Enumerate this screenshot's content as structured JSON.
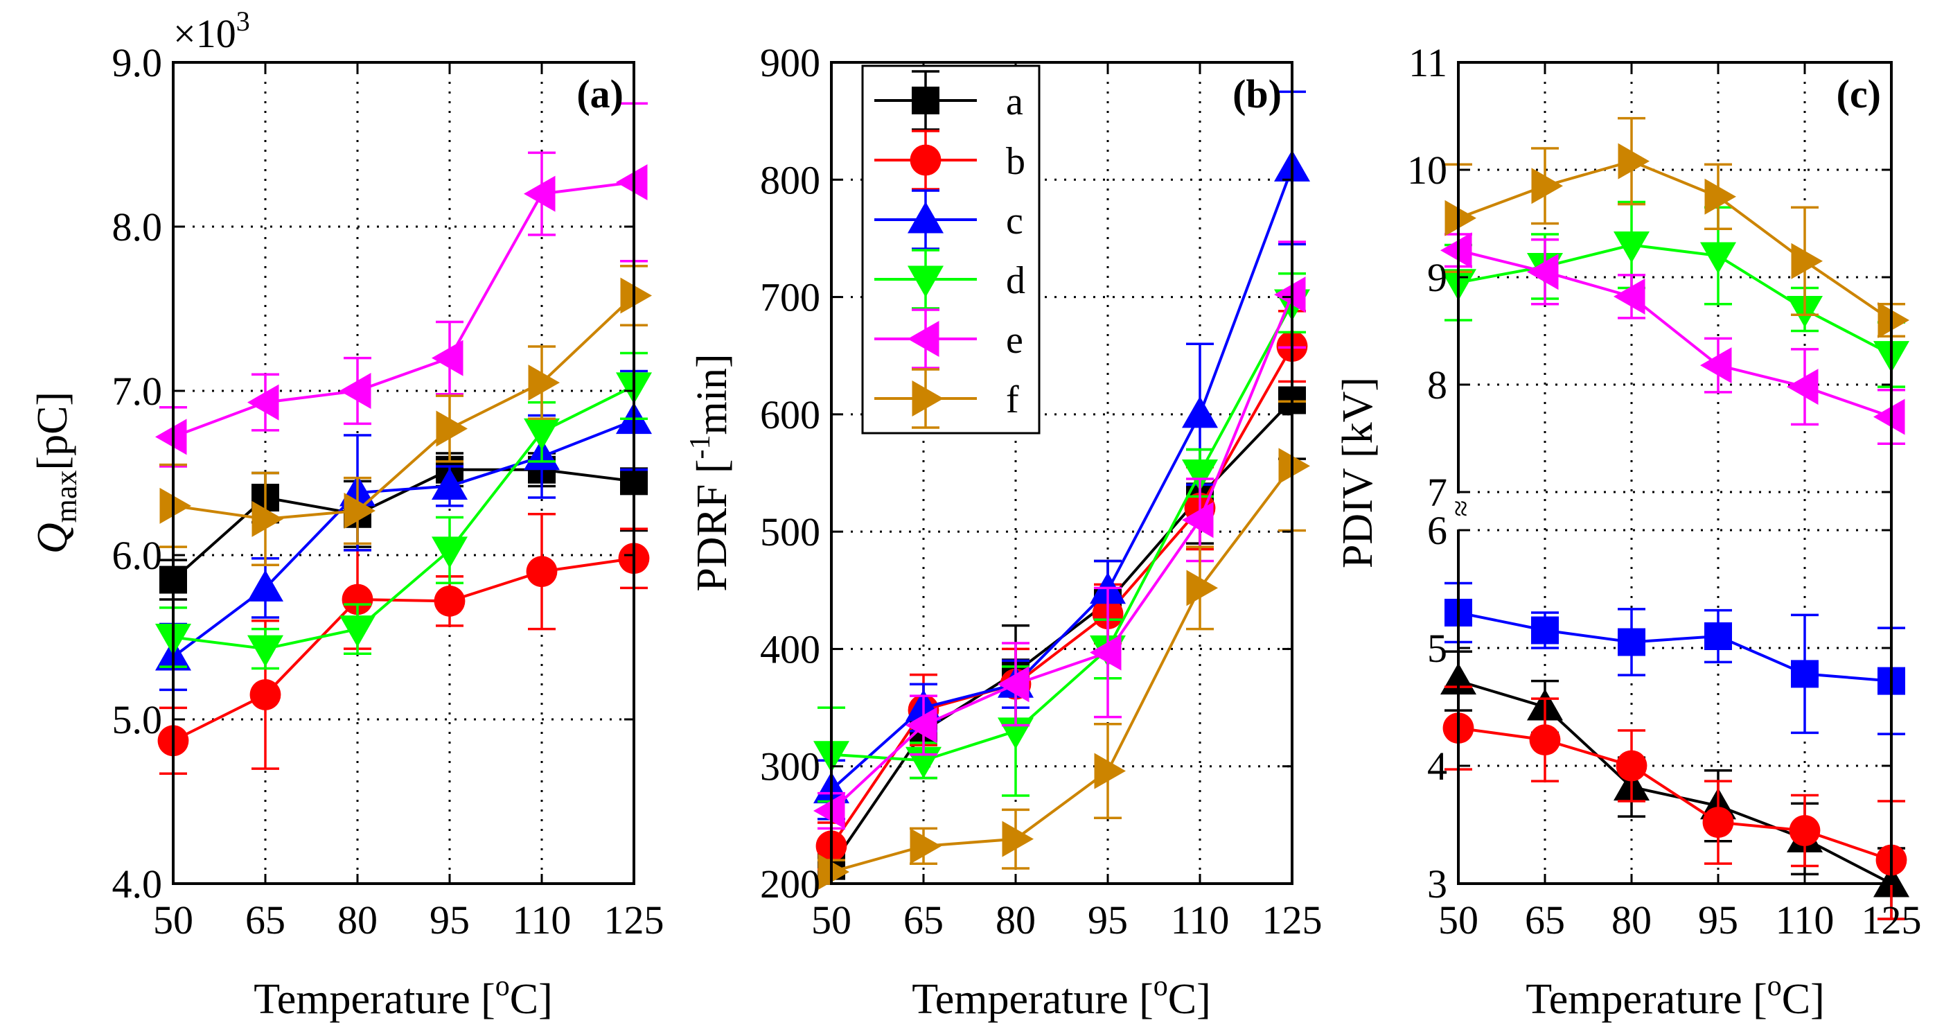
{
  "chart_data": [
    {
      "panel": "(a)",
      "type": "line",
      "xlabel": "Temperature [°C]",
      "ylabel": "Q_max [pC]",
      "ylabel_main": "Q",
      "ylabel_sub": "max",
      "ylabel_unit": "[pC]",
      "y_multiplier": "×10",
      "y_multiplier_exp": "3",
      "x": [
        50,
        65,
        80,
        95,
        110,
        125
      ],
      "xlim": [
        50,
        125
      ],
      "ylim": [
        4.0,
        9.0
      ],
      "yticks": [
        4.0,
        5.0,
        6.0,
        7.0,
        8.0,
        9.0
      ],
      "ytick_labels": [
        "4.0",
        "5.0",
        "6.0",
        "7.0",
        "8.0",
        "9.0"
      ],
      "grid": true,
      "series": [
        {
          "name": "a",
          "values": [
            5.85,
            6.35,
            6.25,
            6.52,
            6.52,
            6.45
          ],
          "errors": [
            0.12,
            0.15,
            0.2,
            0.1,
            0.1,
            0.3
          ]
        },
        {
          "name": "b",
          "values": [
            4.87,
            5.15,
            5.73,
            5.72,
            5.9,
            5.98
          ],
          "errors": [
            0.2,
            0.45,
            0.3,
            0.15,
            0.35,
            0.18
          ]
        },
        {
          "name": "c",
          "values": [
            5.38,
            5.8,
            6.38,
            6.42,
            6.6,
            6.82
          ],
          "errors": [
            0.2,
            0.18,
            0.35,
            0.12,
            0.25,
            0.3
          ]
        },
        {
          "name": "d",
          "values": [
            5.5,
            5.43,
            5.55,
            6.03,
            6.75,
            7.03
          ],
          "errors": [
            0.18,
            0.12,
            0.15,
            0.2,
            0.18,
            0.2
          ]
        },
        {
          "name": "e",
          "values": [
            6.72,
            6.93,
            7.0,
            7.2,
            8.2,
            8.27
          ],
          "errors": [
            0.18,
            0.17,
            0.2,
            0.22,
            0.25,
            0.48
          ]
        },
        {
          "name": "f",
          "values": [
            6.3,
            6.22,
            6.27,
            6.77,
            7.05,
            7.58
          ],
          "errors": [
            0.25,
            0.28,
            0.2,
            0.2,
            0.22,
            0.18
          ]
        }
      ]
    },
    {
      "panel": "(b)",
      "type": "line",
      "xlabel": "Temperature [°C]",
      "ylabel": "PDRF [⁻¹min]",
      "ylabel_main": "PDRF [",
      "ylabel_sup": "-1",
      "ylabel_tail": "min]",
      "x": [
        50,
        65,
        80,
        95,
        110,
        125
      ],
      "xlim": [
        50,
        125
      ],
      "ylim": [
        200,
        900
      ],
      "yticks": [
        200,
        300,
        400,
        500,
        600,
        700,
        800,
        900
      ],
      "ytick_labels": [
        "200",
        "300",
        "400",
        "500",
        "600",
        "700",
        "800",
        "900"
      ],
      "grid": true,
      "legend_position": "top-left",
      "series": [
        {
          "name": "a",
          "values": [
            215,
            330,
            380,
            440,
            530,
            612
          ],
          "errors": [
            15,
            40,
            40,
            35,
            40,
            50
          ]
        },
        {
          "name": "b",
          "values": [
            232,
            348,
            370,
            430,
            520,
            658
          ],
          "errors": [
            20,
            30,
            30,
            25,
            35,
            30
          ]
        },
        {
          "name": "c",
          "values": [
            280,
            350,
            370,
            450,
            600,
            810
          ],
          "errors": [
            25,
            20,
            20,
            25,
            60,
            65
          ]
        },
        {
          "name": "d",
          "values": [
            310,
            305,
            330,
            400,
            550,
            695
          ],
          "errors": [
            40,
            15,
            55,
            25,
            20,
            25
          ]
        },
        {
          "name": "e",
          "values": [
            262,
            335,
            370,
            397,
            510,
            702
          ],
          "errors": [
            15,
            25,
            35,
            55,
            35,
            45
          ]
        },
        {
          "name": "f",
          "values": [
            210,
            232,
            238,
            296,
            452,
            556
          ],
          "errors": [
            10,
            15,
            25,
            40,
            35,
            55
          ]
        }
      ]
    },
    {
      "panel": "(c)",
      "type": "line",
      "xlabel": "Temperature [°C]",
      "ylabel": "PDIV [kV]",
      "x": [
        50,
        65,
        80,
        95,
        110,
        125
      ],
      "xlim": [
        50,
        125
      ],
      "ylim": [
        3,
        11
      ],
      "axis_break": "between 6 and 7",
      "yticks_lower": [
        3,
        4,
        5,
        6
      ],
      "yticks_upper": [
        7,
        8,
        9,
        10,
        11
      ],
      "ytick_labels_lower": [
        "3",
        "4",
        "5",
        "6"
      ],
      "ytick_labels_upper": [
        "7",
        "8",
        "9",
        "10",
        "11"
      ],
      "break_mark": "≈",
      "grid": true,
      "series": [
        {
          "name": "a",
          "values": [
            4.72,
            4.5,
            3.82,
            3.66,
            3.38,
            3.0
          ],
          "errors": [
            0.25,
            0.22,
            0.25,
            0.3,
            0.3,
            0.3
          ]
        },
        {
          "name": "b",
          "values": [
            4.32,
            4.22,
            4.0,
            3.52,
            3.45,
            3.2
          ],
          "errors": [
            0.35,
            0.35,
            0.3,
            0.35,
            0.3,
            0.5
          ]
        },
        {
          "name": "c",
          "values": [
            5.3,
            5.15,
            5.05,
            5.1,
            4.78,
            4.72
          ],
          "errors": [
            0.25,
            0.15,
            0.28,
            0.22,
            0.5,
            0.45
          ]
        },
        {
          "name": "d",
          "values": [
            8.95,
            9.1,
            9.3,
            9.2,
            8.7,
            8.28
          ],
          "errors": [
            0.35,
            0.3,
            0.4,
            0.45,
            0.2,
            0.3
          ]
        },
        {
          "name": "e",
          "values": [
            9.25,
            9.05,
            8.82,
            8.18,
            7.98,
            7.7
          ],
          "errors": [
            0.15,
            0.3,
            0.2,
            0.25,
            0.35,
            0.25
          ]
        },
        {
          "name": "f",
          "values": [
            9.55,
            9.85,
            10.08,
            9.75,
            9.15,
            8.6
          ],
          "errors": [
            0.5,
            0.35,
            0.4,
            0.3,
            0.5,
            0.15
          ]
        }
      ]
    }
  ],
  "x_tick_labels": [
    "50",
    "65",
    "80",
    "95",
    "110",
    "125"
  ],
  "xlabel_main": "Temperature [",
  "xlabel_sup": "o",
  "xlabel_tail": "C]",
  "legend_entries": [
    "a",
    "b",
    "c",
    "d",
    "e",
    "f"
  ],
  "series_styles": {
    "a": {
      "color": "#000000",
      "marker": "square"
    },
    "b": {
      "color": "#ff0000",
      "marker": "circle"
    },
    "c": {
      "color": "#0000ff",
      "marker": "triangle-up"
    },
    "d": {
      "color": "#00ff00",
      "marker": "triangle-down"
    },
    "e": {
      "color": "#ff00ff",
      "marker": "triangle-left"
    },
    "f": {
      "color": "#cc8400",
      "marker": "triangle-right"
    }
  },
  "panel_c_series_styles": {
    "a": {
      "color": "#000000",
      "marker": "triangle-up"
    },
    "b": {
      "color": "#ff0000",
      "marker": "circle"
    },
    "c": {
      "color": "#0000ff",
      "marker": "square"
    },
    "d": {
      "color": "#00ff00",
      "marker": "triangle-down"
    },
    "e": {
      "color": "#ff00ff",
      "marker": "triangle-left"
    },
    "f": {
      "color": "#cc8400",
      "marker": "triangle-right"
    }
  }
}
